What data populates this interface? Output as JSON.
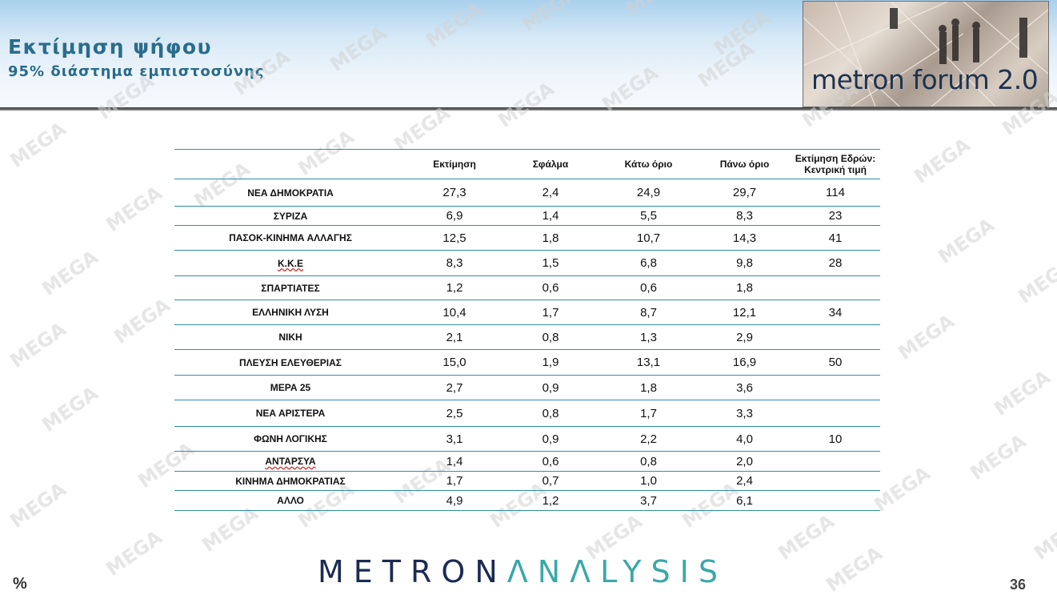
{
  "header": {
    "title": "Εκτίμηση ψήφου",
    "subtitle": "95% διάστημα εμπιστοσύνης",
    "logo_text": "metron forum 2.0"
  },
  "watermark_text": "MEGA",
  "table": {
    "columns": [
      "",
      "Εκτίμηση",
      "Σφάλμα",
      "Κάτω όριο",
      "Πάνω όριο",
      "Εκτίμηση Εδρών: Κεντρική τιμή"
    ],
    "rows": [
      {
        "party": "ΝΕΑ  ΔΗΜΟΚΡΑΤΙΑ",
        "estimate": "27,3",
        "error": "2,4",
        "lower": "24,9",
        "upper": "29,7",
        "seats": "114"
      },
      {
        "party": "ΣΥΡΙΖΑ",
        "estimate": "6,9",
        "error": "1,4",
        "lower": "5,5",
        "upper": "8,3",
        "seats": "23"
      },
      {
        "party": "ΠΑΣΟΚ-ΚΙΝΗΜΑ  ΑΛΛΑΓΗΣ",
        "estimate": "12,5",
        "error": "1,8",
        "lower": "10,7",
        "upper": "14,3",
        "seats": "41"
      },
      {
        "party": "Κ.Κ.Ε",
        "estimate": "8,3",
        "error": "1,5",
        "lower": "6,8",
        "upper": "9,8",
        "seats": "28"
      },
      {
        "party": "ΣΠΑΡΤΙΑΤΕΣ",
        "estimate": "1,2",
        "error": "0,6",
        "lower": "0,6",
        "upper": "1,8",
        "seats": ""
      },
      {
        "party": "ΕΛΛΗΝΙΚΗ  ΛΥΣΗ",
        "estimate": "10,4",
        "error": "1,7",
        "lower": "8,7",
        "upper": "12,1",
        "seats": "34"
      },
      {
        "party": "ΝΙΚΗ",
        "estimate": "2,1",
        "error": "0,8",
        "lower": "1,3",
        "upper": "2,9",
        "seats": ""
      },
      {
        "party": "ΠΛΕΥΣΗ ΕΛΕΥΘΕΡΙΑΣ",
        "estimate": "15,0",
        "error": "1,9",
        "lower": "13,1",
        "upper": "16,9",
        "seats": "50"
      },
      {
        "party": "ΜΕΡΑ 25",
        "estimate": "2,7",
        "error": "0,9",
        "lower": "1,8",
        "upper": "3,6",
        "seats": ""
      },
      {
        "party": "ΝΕΑ ΑΡΙΣΤΕΡΑ",
        "estimate": "2,5",
        "error": "0,8",
        "lower": "1,7",
        "upper": "3,3",
        "seats": ""
      },
      {
        "party": "ΦΩΝΗ ΛΟΓΙΚΗΣ",
        "estimate": "3,1",
        "error": "0,9",
        "lower": "2,2",
        "upper": "4,0",
        "seats": "10"
      },
      {
        "party": "ΑΝΤΑΡΣΥΑ",
        "estimate": "1,4",
        "error": "0,6",
        "lower": "0,8",
        "upper": "2,0",
        "seats": ""
      },
      {
        "party": "ΚΙΝΗΜΑ ΔΗΜΟΚΡΑΤΙΑΣ",
        "estimate": "1,7",
        "error": "0,7",
        "lower": "1,0",
        "upper": "2,4",
        "seats": ""
      },
      {
        "party": "ΑΛΛΟ",
        "estimate": "4,9",
        "error": "1,2",
        "lower": "3,7",
        "upper": "6,1",
        "seats": ""
      }
    ]
  },
  "footer": {
    "brand_part1": "METRON",
    "brand_part2": "ΛNΛLYSIS",
    "percent": "%",
    "page_number": "36"
  }
}
